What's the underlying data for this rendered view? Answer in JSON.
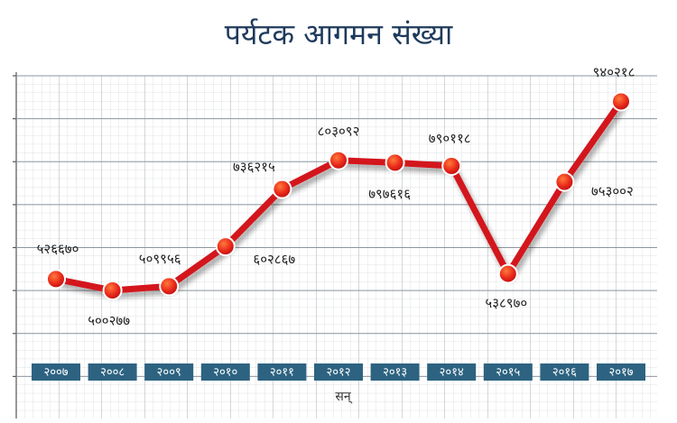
{
  "chart_data": {
    "type": "line",
    "title": "पर्यटक आगमन संख्या",
    "x_label": "सन्",
    "categories": [
      "२००७",
      "२००८",
      "२००९",
      "२०१०",
      "२०११",
      "२०१२",
      "२०१३",
      "२०१४",
      "२०१५",
      "२०१६",
      "२०१७"
    ],
    "values": [
      526670,
      500277,
      509956,
      602867,
      736215,
      803092,
      797616,
      790118,
      538970,
      753002,
      940218
    ],
    "value_labels": [
      "५२६६७०",
      "५००२७७",
      "५०९९५६",
      "६०२८६७",
      "७३६२१५",
      "८०३०९२",
      "७९७६१६",
      "७९०११८",
      "५३८९७०",
      "७५३००२",
      "९४०२१८"
    ],
    "color": "#d3141c",
    "ylim": [
      200000,
      1000000
    ],
    "yticks": [
      300000,
      400000,
      500000,
      600000,
      700000,
      800000,
      900000,
      1000000
    ],
    "grid": true
  }
}
